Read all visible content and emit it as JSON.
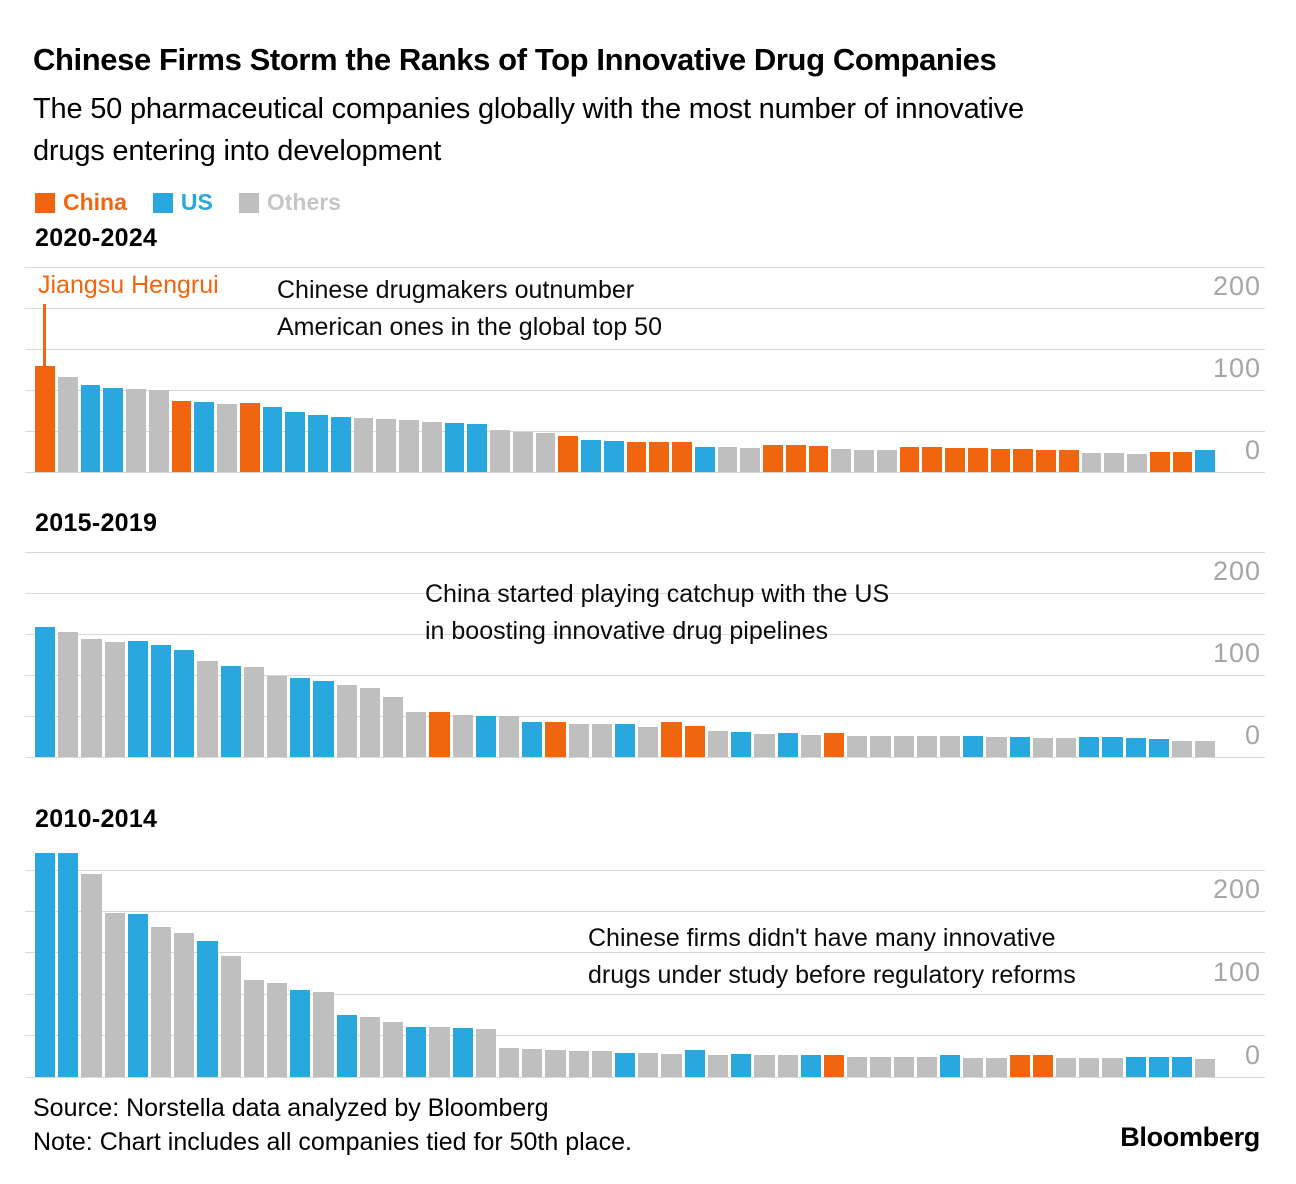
{
  "header": {
    "title": "Chinese Firms Storm the Ranks of Top Innovative Drug Companies",
    "subtitle_lines": [
      "The 50 pharmaceutical companies globally with the most number of innovative",
      "drugs entering into development"
    ]
  },
  "legend": {
    "items": [
      {
        "label": "China",
        "group": "china"
      },
      {
        "label": "US",
        "group": "us"
      },
      {
        "label": "Others",
        "group": "others"
      }
    ]
  },
  "colors": {
    "china": "#f2650f",
    "us": "#29a8e0",
    "others": "#bfbfbf",
    "others_text": "#c6c6c6",
    "gridline": "#d9d9d9",
    "axis_label": "#a6a6a6"
  },
  "footer": {
    "source": "Source: Norstella data analyzed by Bloomberg",
    "note": "Note: Chart includes all companies tied for 50th place.",
    "logo": "Bloomberg"
  },
  "chart_data": [
    {
      "type": "bar",
      "title": "2020-2024",
      "annotation": [
        "Chinese drugmakers outnumber",
        "American ones in the global top 50"
      ],
      "callout": "Jiangsu Hengrui",
      "ylabel": "",
      "xlabel": "",
      "ylim": [
        0,
        250
      ],
      "yticks": [
        0,
        100,
        200
      ],
      "gridline_step": 50,
      "legend_position": "top-left",
      "groups": [
        "china",
        "others",
        "us",
        "us",
        "others",
        "others",
        "china",
        "us",
        "others",
        "china",
        "us",
        "us",
        "us",
        "us",
        "others",
        "others",
        "others",
        "others",
        "us",
        "us",
        "others",
        "others",
        "others",
        "china",
        "us",
        "us",
        "china",
        "china",
        "china",
        "us",
        "others",
        "others",
        "china",
        "china",
        "china",
        "others",
        "others",
        "others",
        "china",
        "china",
        "china",
        "china",
        "china",
        "china",
        "china",
        "china",
        "others",
        "others",
        "others",
        "china",
        "china",
        "us"
      ],
      "values": [
        129,
        116,
        106,
        103,
        101,
        100,
        87,
        85,
        83,
        84,
        79,
        73,
        69,
        67,
        66,
        65,
        64,
        61,
        60,
        59,
        51,
        49,
        48,
        44,
        39,
        38,
        37,
        37,
        36,
        31,
        30,
        29,
        33,
        33,
        32,
        28,
        27,
        27,
        30,
        30,
        29,
        29,
        28,
        28,
        27,
        27,
        23,
        23,
        22,
        24,
        24,
        27
      ]
    },
    {
      "type": "bar",
      "title": "2015-2019",
      "annotation": [
        "China started playing catchup with the US",
        "in boosting innovative drug pipelines"
      ],
      "callout": "",
      "ylabel": "",
      "xlabel": "",
      "ylim": [
        0,
        250
      ],
      "yticks": [
        0,
        100,
        200
      ],
      "gridline_step": 50,
      "groups": [
        "us",
        "others",
        "others",
        "others",
        "us",
        "us",
        "us",
        "others",
        "us",
        "others",
        "others",
        "us",
        "us",
        "others",
        "others",
        "others",
        "others",
        "china",
        "others",
        "us",
        "others",
        "us",
        "china",
        "others",
        "others",
        "us",
        "others",
        "china",
        "china",
        "others",
        "us",
        "others",
        "us",
        "others",
        "china",
        "others",
        "others",
        "others",
        "others",
        "others",
        "us",
        "others",
        "us",
        "others",
        "others",
        "us",
        "us",
        "us",
        "us",
        "others",
        "others"
      ],
      "values": [
        158,
        152,
        144,
        140,
        141,
        137,
        130,
        117,
        111,
        110,
        99,
        96,
        93,
        88,
        84,
        73,
        55,
        55,
        51,
        50,
        50,
        43,
        43,
        40,
        40,
        40,
        37,
        43,
        38,
        32,
        30,
        28,
        29,
        27,
        29,
        26,
        26,
        26,
        26,
        26,
        26,
        24,
        24,
        23,
        23,
        25,
        24,
        23,
        22,
        20,
        20
      ]
    },
    {
      "type": "bar",
      "title": "2010-2014",
      "annotation": [
        "Chinese firms didn't have many innovative",
        "drugs under study before regulatory reforms"
      ],
      "callout": "",
      "ylabel": "",
      "xlabel": "",
      "ylim": [
        0,
        250
      ],
      "yticks": [
        0,
        100,
        200
      ],
      "gridline_step": 50,
      "groups": [
        "us",
        "us",
        "others",
        "others",
        "us",
        "others",
        "others",
        "us",
        "others",
        "others",
        "others",
        "us",
        "others",
        "us",
        "others",
        "others",
        "us",
        "others",
        "us",
        "others",
        "others",
        "others",
        "others",
        "others",
        "others",
        "us",
        "others",
        "others",
        "us",
        "others",
        "us",
        "others",
        "others",
        "us",
        "china",
        "others",
        "others",
        "others",
        "others",
        "us",
        "others",
        "others",
        "china",
        "china",
        "others",
        "others",
        "others",
        "us",
        "us",
        "us",
        "others"
      ],
      "values": [
        270,
        270,
        245,
        198,
        197,
        181,
        174,
        164,
        146,
        117,
        114,
        105,
        103,
        75,
        72,
        66,
        61,
        60,
        59,
        58,
        35,
        34,
        33,
        32,
        32,
        29,
        29,
        28,
        33,
        27,
        28,
        26,
        26,
        27,
        26,
        24,
        24,
        24,
        24,
        26,
        23,
        23,
        26,
        26,
        23,
        23,
        23,
        24,
        24,
        24,
        22
      ]
    }
  ]
}
